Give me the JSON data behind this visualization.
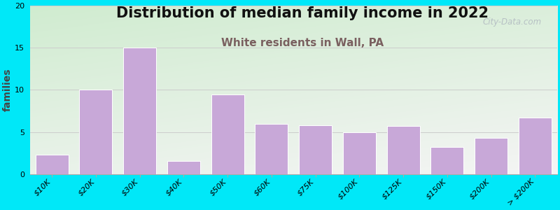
{
  "title": "Distribution of median family income in 2022",
  "subtitle": "White residents in Wall, PA",
  "ylabel": "families",
  "categories": [
    "$10K",
    "$20K",
    "$30K",
    "$40K",
    "$50K",
    "$60K",
    "$75K",
    "$100K",
    "$125K",
    "$150K",
    "$200K",
    "> $200K"
  ],
  "values": [
    2.3,
    10.0,
    15.0,
    1.6,
    9.5,
    6.0,
    5.8,
    5.0,
    5.7,
    3.2,
    4.3,
    6.7
  ],
  "bar_color": "#c8a8d8",
  "bar_edgecolor": "#ffffff",
  "ylim": [
    0,
    20
  ],
  "yticks": [
    0,
    5,
    10,
    15,
    20
  ],
  "background_outer": "#00e8f8",
  "background_plot_topleft": "#d8edd8",
  "background_plot_bottomright": "#f0f0f0",
  "title_fontsize": 15,
  "subtitle_fontsize": 11,
  "subtitle_color": "#7a6060",
  "ylabel_fontsize": 10,
  "tick_fontsize": 8,
  "watermark": "City-Data.com",
  "grid_color": "#cccccc",
  "title_color": "#111111"
}
